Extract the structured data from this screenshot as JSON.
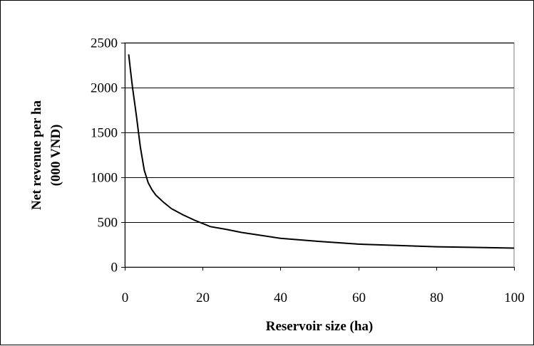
{
  "chart_data": {
    "type": "line",
    "title": "",
    "xlabel": "Reservoir size (ha)",
    "ylabel_line1": "Net revenue per ha",
    "ylabel_line2": "(000 VND)",
    "xlim": [
      0,
      100
    ],
    "ylim": [
      0,
      2500
    ],
    "x_ticks": [
      0,
      20,
      40,
      60,
      80,
      100
    ],
    "y_ticks": [
      0,
      500,
      1000,
      1500,
      2000,
      2500
    ],
    "x_tick_labels": [
      "0",
      "20",
      "40",
      "60",
      "80",
      "100"
    ],
    "y_tick_labels": [
      "0",
      "500",
      "1000",
      "1500",
      "2000",
      "2500"
    ],
    "grid": "horizontal",
    "legend": "none",
    "line_color": "#000000",
    "series": [
      {
        "x": [
          1,
          1.5,
          2,
          3,
          4,
          5,
          6,
          7,
          8,
          10,
          12,
          15,
          18,
          22,
          26,
          30,
          40,
          50,
          60,
          70,
          80,
          90,
          100
        ],
        "y": [
          2370,
          2180,
          2000,
          1680,
          1340,
          1080,
          940,
          860,
          800,
          720,
          650,
          580,
          520,
          450,
          420,
          385,
          320,
          285,
          255,
          240,
          225,
          218,
          210
        ]
      }
    ]
  }
}
